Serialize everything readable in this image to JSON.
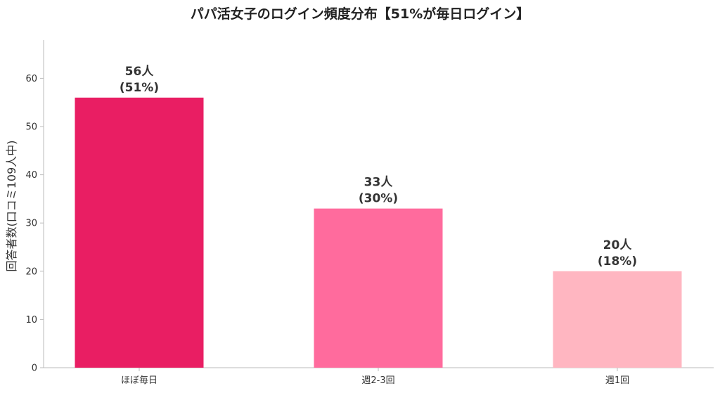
{
  "chart_data": {
    "type": "bar",
    "title": "パパ活女子のログイン頻度分布【51%が毎日ログイン】",
    "xlabel": "",
    "ylabel": "回答者数(口コミ109人中)",
    "categories": [
      "ほぼ毎日",
      "週2-3回",
      "週1回"
    ],
    "values": [
      56,
      33,
      20
    ],
    "data_labels": [
      [
        "56人",
        "(51%)"
      ],
      [
        "33人",
        "(30%)"
      ],
      [
        "20人",
        "(18%)"
      ]
    ],
    "colors": [
      "#e91e63",
      "#ff6b9d",
      "#ffb6c1"
    ],
    "ylim": [
      0,
      68
    ],
    "yticks": [
      0,
      10,
      20,
      30,
      40,
      50,
      60
    ],
    "grid": false,
    "legend": "none"
  }
}
